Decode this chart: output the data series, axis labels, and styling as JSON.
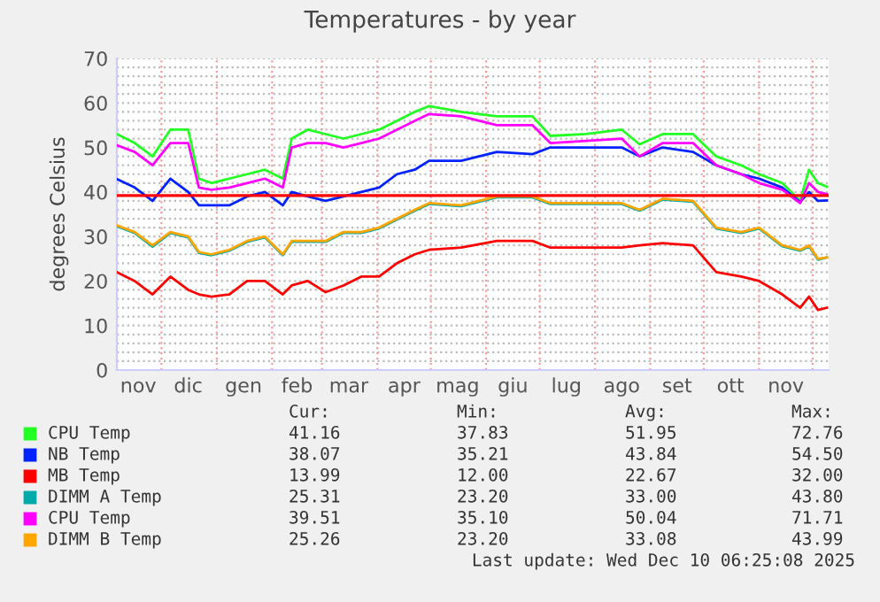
{
  "chart_data": {
    "type": "line",
    "title": "Temperatures - by year",
    "ylabel": "degrees Celsius",
    "x": [
      "2024-11-06",
      "2024-11-16",
      "2024-11-26",
      "2024-12-06",
      "2024-12-16",
      "2024-12-22",
      "2024-12-29",
      "2025-01-08",
      "2025-01-18",
      "2025-01-28",
      "2025-02-07",
      "2025-02-12",
      "2025-02-21",
      "2025-03-03",
      "2025-03-13",
      "2025-03-23",
      "2025-04-02",
      "2025-04-12",
      "2025-04-22",
      "2025-04-30",
      "2025-05-18",
      "2025-06-07",
      "2025-06-27",
      "2025-07-07",
      "2025-07-27",
      "2025-08-16",
      "2025-08-26",
      "2025-09-08",
      "2025-09-25",
      "2025-10-08",
      "2025-10-22",
      "2025-11-01",
      "2025-11-14",
      "2025-11-24",
      "2025-11-29",
      "2025-12-04",
      "2025-12-09"
    ],
    "series": [
      {
        "name": "CPU Temp",
        "color": "#22ff22",
        "values": [
          53,
          51,
          48,
          54,
          54,
          43,
          42,
          43,
          44,
          45,
          43,
          52,
          54,
          53,
          52,
          53,
          54,
          56,
          58,
          59.3,
          58,
          57,
          57,
          52.6,
          53,
          54,
          50.7,
          53,
          53,
          48,
          46,
          44,
          42,
          38,
          45,
          42,
          41.2
        ]
      },
      {
        "name": "NB Temp",
        "color": "#0022ff",
        "values": [
          42.9,
          41,
          38,
          43,
          40,
          37,
          37,
          37,
          39,
          40,
          37,
          40,
          39,
          38,
          39,
          40,
          41,
          44,
          45,
          47,
          47,
          49,
          48.5,
          50,
          50,
          50,
          48,
          50,
          49,
          46,
          44,
          43,
          41,
          37.7,
          40,
          38,
          38.1
        ]
      },
      {
        "name": "MB Temp",
        "color": "#ff0000",
        "values": [
          22,
          20,
          17,
          21,
          18,
          17,
          16.5,
          17,
          20,
          20,
          17,
          19,
          20,
          17.5,
          19,
          21,
          21,
          24,
          26,
          27,
          27.5,
          29,
          29,
          27.5,
          27.5,
          27.5,
          28,
          28.5,
          28,
          22,
          21,
          20,
          17,
          14,
          16.5,
          13.5,
          14
        ]
      },
      {
        "name": "DIMM A Temp",
        "color": "#00aaaa",
        "values": [
          32.3,
          30.8,
          27.7,
          30.8,
          29.8,
          26.3,
          25.8,
          26.8,
          28.8,
          29.8,
          25.8,
          28.8,
          28.8,
          28.8,
          30.8,
          30.8,
          31.8,
          33.8,
          35.8,
          37.3,
          36.8,
          38.8,
          38.8,
          37.3,
          37.3,
          37.3,
          35.8,
          38.3,
          37.8,
          31.8,
          30.8,
          31.8,
          27.8,
          26.8,
          27.8,
          24.8,
          25.3
        ]
      },
      {
        "name": "CPU Temp",
        "color": "#ff00ff",
        "values": [
          50.5,
          49,
          46,
          51,
          51,
          41,
          40.5,
          41,
          42,
          43,
          41,
          50,
          51,
          51,
          50,
          51,
          52,
          54,
          56,
          57.5,
          57,
          55,
          55,
          51,
          51.5,
          52,
          48,
          51,
          51,
          46,
          44,
          42,
          40.5,
          37.5,
          42,
          40,
          39.5
        ]
      },
      {
        "name": "DIMM B Temp",
        "color": "#ffa500",
        "values": [
          32.5,
          31,
          28,
          31,
          30,
          26.5,
          26,
          27,
          29,
          30,
          26,
          29,
          29,
          29,
          31,
          31,
          32,
          34,
          36,
          37.5,
          37,
          39,
          39,
          37.5,
          37.5,
          37.5,
          36,
          38.5,
          38,
          32,
          31,
          32,
          28,
          27,
          28,
          25,
          25.3
        ]
      }
    ],
    "xlim": [
      "2024-11-06",
      "2025-12-10"
    ],
    "xticks": [
      {
        "value": "2024-11-18",
        "label": "nov"
      },
      {
        "value": "2024-12-01",
        "label": null
      },
      {
        "value": "2024-12-16",
        "label": "dic"
      },
      {
        "value": "2025-01-01",
        "label": null
      },
      {
        "value": "2025-01-16",
        "label": "gen"
      },
      {
        "value": "2025-02-01",
        "label": null
      },
      {
        "value": "2025-02-15",
        "label": "feb"
      },
      {
        "value": "2025-03-01",
        "label": null
      },
      {
        "value": "2025-03-16",
        "label": "mar"
      },
      {
        "value": "2025-04-01",
        "label": null
      },
      {
        "value": "2025-04-16",
        "label": "apr"
      },
      {
        "value": "2025-05-01",
        "label": null
      },
      {
        "value": "2025-05-16",
        "label": "mag"
      },
      {
        "value": "2025-06-01",
        "label": null
      },
      {
        "value": "2025-06-16",
        "label": "giu"
      },
      {
        "value": "2025-07-01",
        "label": null
      },
      {
        "value": "2025-07-16",
        "label": "lug"
      },
      {
        "value": "2025-08-01",
        "label": null
      },
      {
        "value": "2025-08-16",
        "label": "ago"
      },
      {
        "value": "2025-09-01",
        "label": null
      },
      {
        "value": "2025-09-16",
        "label": "set"
      },
      {
        "value": "2025-10-01",
        "label": null
      },
      {
        "value": "2025-10-16",
        "label": "ott"
      },
      {
        "value": "2025-11-01",
        "label": null
      },
      {
        "value": "2025-11-16",
        "label": "nov"
      },
      {
        "value": "2025-12-01",
        "label": null
      }
    ],
    "ylim": [
      0,
      70
    ],
    "yticks": [
      0,
      {
        "value": 2,
        "label": null
      },
      {
        "value": 4,
        "label": null
      },
      {
        "value": 6,
        "label": null
      },
      {
        "value": 8,
        "label": null
      },
      10,
      {
        "value": 12,
        "label": null
      },
      {
        "value": 14,
        "label": null
      },
      {
        "value": 16,
        "label": null
      },
      {
        "value": 18,
        "label": null
      },
      20,
      {
        "value": 22,
        "label": null
      },
      {
        "value": 24,
        "label": null
      },
      {
        "value": 26,
        "label": null
      },
      {
        "value": 28,
        "label": null
      },
      30,
      {
        "value": 32,
        "label": null
      },
      {
        "value": 34,
        "label": null
      },
      {
        "value": 36,
        "label": null
      },
      {
        "value": 38,
        "label": null
      },
      40,
      {
        "value": 42,
        "label": null
      },
      {
        "value": 44,
        "label": null
      },
      {
        "value": 46,
        "label": null
      },
      {
        "value": 48,
        "label": null
      },
      50,
      {
        "value": 52,
        "label": null
      },
      {
        "value": 54,
        "label": null
      },
      {
        "value": 56,
        "label": null
      },
      {
        "value": 58,
        "label": null
      },
      60,
      {
        "value": 62,
        "label": null
      },
      {
        "value": 64,
        "label": null
      },
      {
        "value": 66,
        "label": null
      },
      {
        "value": 68,
        "label": null
      },
      70
    ],
    "ref_lines": [
      {
        "axis": "y",
        "value": 39.2,
        "color": "#ff0000"
      }
    ],
    "grid": true,
    "legend": "bottom",
    "marker": "none",
    "line_style": "solid",
    "annotations": [
      "Cur:",
      "Min:",
      "Avg:",
      "Max:",
      "41.16",
      "37.83",
      "51.95",
      "72.76",
      "38.07",
      "35.21",
      "43.84",
      "54.50",
      "13.99",
      "12.00",
      "22.67",
      "32.00",
      "25.31",
      "23.20",
      "33.00",
      "43.80",
      "39.51",
      "35.10",
      "50.04",
      "71.71",
      "25.26",
      "23.20",
      "33.08",
      "43.99",
      "Last update: Wed Dec 10 06:25:08 2025"
    ]
  }
}
